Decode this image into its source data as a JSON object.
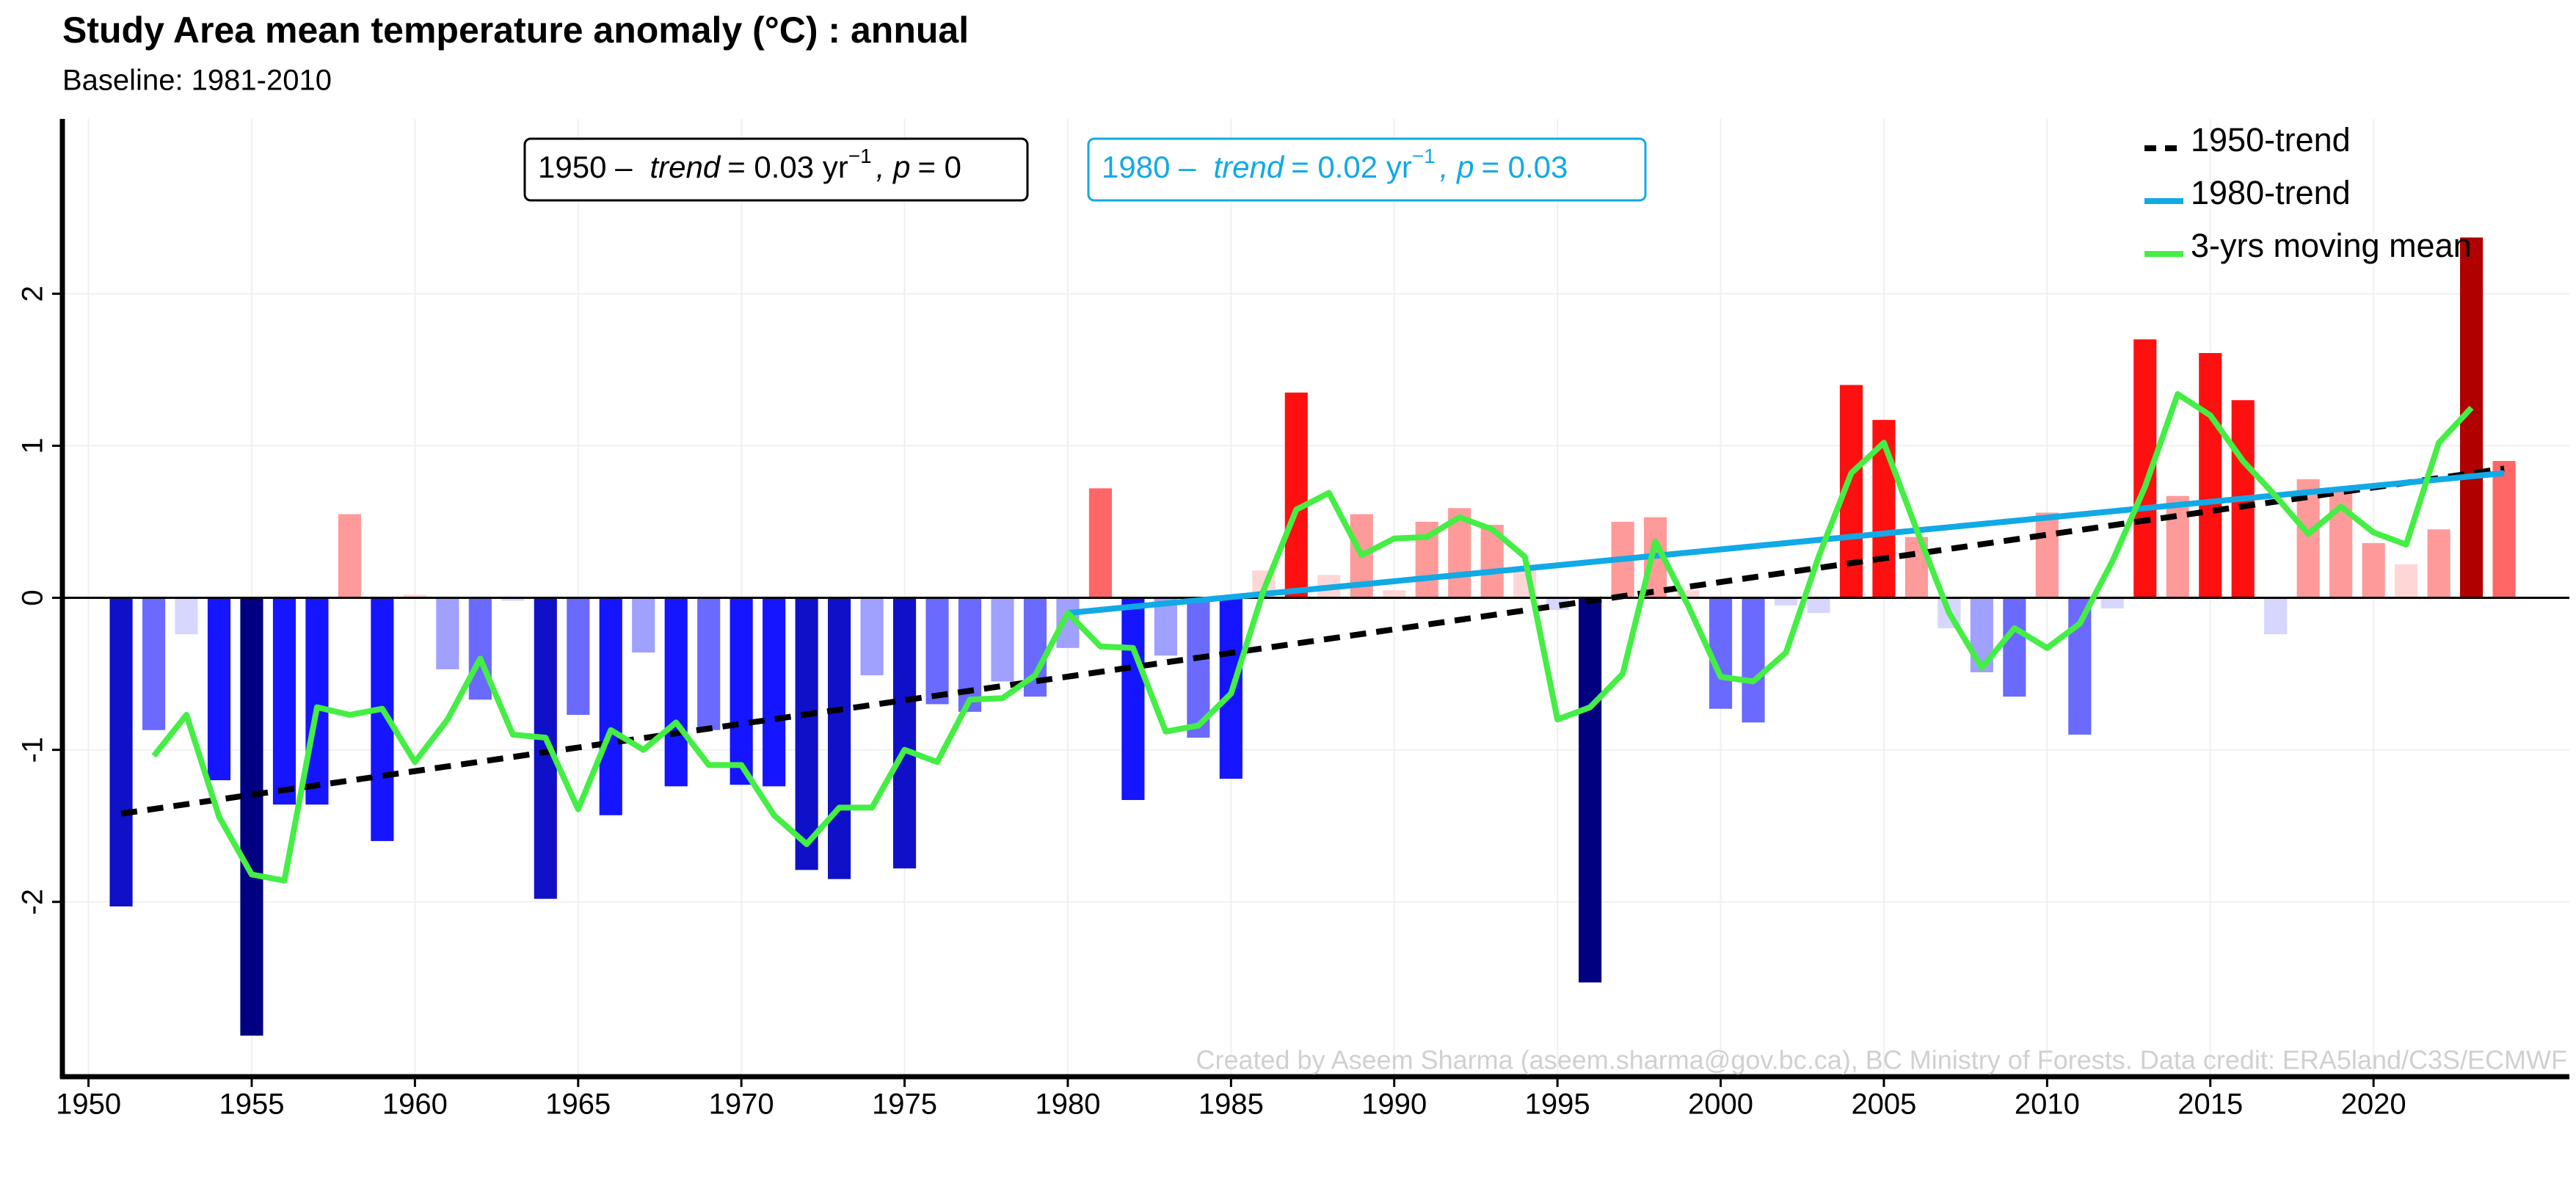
{
  "chart_data": {
    "type": "bar",
    "title": "Study Area mean temperature anomaly (°C) : annual",
    "subtitle": "Baseline: 1981-2010",
    "credit": "Created by Aseem Sharma (aseem.sharma@gov.bc.ca), BC Ministry of Forests. Data credit: ERA5land/C3S/ECMWF",
    "xlim": [
      1949.2,
      2026
    ],
    "ylim": [
      -3.15,
      3.15
    ],
    "xticks": [
      1950,
      1955,
      1960,
      1965,
      1970,
      1975,
      1980,
      1985,
      1990,
      1995,
      2000,
      2005,
      2010,
      2015,
      2020
    ],
    "yticks": [
      -2,
      -1,
      0,
      1,
      2
    ],
    "grid": true,
    "legend": "top-right",
    "x": [
      1951,
      1952,
      1953,
      1954,
      1955,
      1956,
      1957,
      1958,
      1959,
      1960,
      1961,
      1962,
      1963,
      1964,
      1965,
      1966,
      1967,
      1968,
      1969,
      1970,
      1971,
      1972,
      1973,
      1974,
      1975,
      1976,
      1977,
      1978,
      1979,
      1980,
      1981,
      1982,
      1983,
      1984,
      1985,
      1986,
      1987,
      1988,
      1989,
      1990,
      1991,
      1992,
      1993,
      1994,
      1995,
      1996,
      1997,
      1998,
      1999,
      2000,
      2001,
      2002,
      2003,
      2004,
      2005,
      2006,
      2007,
      2008,
      2009,
      2010,
      2011,
      2012,
      2013,
      2014,
      2015,
      2016,
      2017,
      2018,
      2019,
      2020,
      2021,
      2022,
      2023,
      2024
    ],
    "values": [
      -2.03,
      -0.87,
      -0.24,
      -1.2,
      -2.88,
      -1.36,
      -1.36,
      0.55,
      -1.6,
      0.02,
      -0.47,
      -0.67,
      -0.02,
      -1.98,
      -0.77,
      -1.43,
      -0.36,
      -1.24,
      -0.87,
      -1.23,
      -1.24,
      -1.79,
      -1.85,
      -0.51,
      -1.78,
      -0.7,
      -0.75,
      -0.55,
      -0.65,
      -0.33,
      0.72,
      -1.33,
      -0.38,
      -0.92,
      -1.19,
      0.18,
      1.35,
      0.15,
      0.55,
      0.05,
      0.5,
      0.59,
      0.48,
      0.2,
      -0.08,
      -2.53,
      0.5,
      0.53,
      0.05,
      -0.73,
      -0.82,
      -0.05,
      -0.1,
      1.4,
      1.17,
      0.4,
      -0.2,
      -0.49,
      -0.65,
      0.56,
      -0.9,
      -0.07,
      1.7,
      0.67,
      1.61,
      1.3,
      -0.24,
      0.78,
      0.7,
      0.36,
      0.22,
      0.45,
      2.37,
      0.9
    ],
    "colors": [
      "#1010c8",
      "#6a6aff",
      "#d6d6ff",
      "#1515ff",
      "#000080",
      "#1515ff",
      "#1515ff",
      "#ff9a9a",
      "#1515ff",
      "#ffd6d6",
      "#a0a0ff",
      "#6a6aff",
      "#d6d6ff",
      "#1010c8",
      "#6a6aff",
      "#1515ff",
      "#a0a0ff",
      "#1515ff",
      "#6a6aff",
      "#1515ff",
      "#1515ff",
      "#1010c8",
      "#1010c8",
      "#a0a0ff",
      "#1010c8",
      "#6a6aff",
      "#6a6aff",
      "#a0a0ff",
      "#6a6aff",
      "#a0a0ff",
      "#ff6666",
      "#1515ff",
      "#a0a0ff",
      "#6a6aff",
      "#1515ff",
      "#ffd6d6",
      "#ff1010",
      "#ffd6d6",
      "#ff9a9a",
      "#ffd6d6",
      "#ff9a9a",
      "#ff9a9a",
      "#ff9a9a",
      "#ffd6d6",
      "#d6d6ff",
      "#000080",
      "#ff9a9a",
      "#ff9a9a",
      "#ffd6d6",
      "#6a6aff",
      "#6a6aff",
      "#d6d6ff",
      "#d6d6ff",
      "#ff1010",
      "#ff1010",
      "#ff9a9a",
      "#d6d6ff",
      "#a0a0ff",
      "#6a6aff",
      "#ff9a9a",
      "#6a6aff",
      "#d6d6ff",
      "#ff1010",
      "#ff9a9a",
      "#ff1010",
      "#ff1010",
      "#d6d6ff",
      "#ff9a9a",
      "#ff9a9a",
      "#ff9a9a",
      "#ffd6d6",
      "#ff9a9a",
      "#b00000",
      "#ff6666"
    ],
    "series": [
      {
        "name": "1950-trend",
        "color": "#000000",
        "dash": true,
        "x": [
          1951,
          2024
        ],
        "values": [
          -1.42,
          0.85
        ]
      },
      {
        "name": "1980-trend",
        "color": "#11a9e6",
        "dash": false,
        "x": [
          1980,
          2024
        ],
        "values": [
          -0.1,
          0.82
        ]
      },
      {
        "name": "3-yrs moving mean",
        "color": "#44ee44",
        "dash": false,
        "x": [
          1952,
          1953,
          1954,
          1955,
          1956,
          1957,
          1958,
          1959,
          1960,
          1961,
          1962,
          1963,
          1964,
          1965,
          1966,
          1967,
          1968,
          1969,
          1970,
          1971,
          1972,
          1973,
          1974,
          1975,
          1976,
          1977,
          1978,
          1979,
          1980,
          1981,
          1982,
          1983,
          1984,
          1985,
          1986,
          1987,
          1988,
          1989,
          1990,
          1991,
          1992,
          1993,
          1994,
          1995,
          1996,
          1997,
          1998,
          1999,
          2000,
          2001,
          2002,
          2003,
          2004,
          2005,
          2006,
          2007,
          2008,
          2009,
          2010,
          2011,
          2012,
          2013,
          2014,
          2015,
          2016,
          2017,
          2018,
          2019,
          2020,
          2021,
          2022,
          2023
        ],
        "values": [
          -1.04,
          -0.77,
          -1.44,
          -1.82,
          -1.86,
          -0.72,
          -0.77,
          -0.73,
          -1.08,
          -0.8,
          -0.4,
          -0.9,
          -0.92,
          -1.39,
          -0.87,
          -1.0,
          -0.82,
          -1.1,
          -1.1,
          -1.43,
          -1.62,
          -1.38,
          -1.38,
          -1.0,
          -1.08,
          -0.67,
          -0.66,
          -0.51,
          -0.1,
          -0.32,
          -0.33,
          -0.88,
          -0.84,
          -0.63,
          0.05,
          0.58,
          0.69,
          0.28,
          0.39,
          0.4,
          0.53,
          0.45,
          0.27,
          -0.8,
          -0.72,
          -0.5,
          0.37,
          -0.05,
          -0.52,
          -0.55,
          -0.36,
          0.27,
          0.82,
          1.02,
          0.45,
          -0.1,
          -0.46,
          -0.2,
          -0.33,
          -0.17,
          0.24,
          0.73,
          1.34,
          1.2,
          0.9,
          0.67,
          0.42,
          0.6,
          0.43,
          0.35,
          1.02,
          1.25
        ]
      }
    ],
    "annotations": [
      {
        "prefix": "1950 –",
        "trend_label": "trend",
        "slope": "= 0.03 yr",
        "exponent": "−1",
        "p_label": ", p",
        "p": "= 0",
        "color": "#000000"
      },
      {
        "prefix": "1980 –",
        "trend_label": "trend",
        "slope": "= 0.02 yr",
        "exponent": "−1",
        "p_label": ", p",
        "p": "= 0.03",
        "color": "#11a9e6"
      }
    ]
  }
}
